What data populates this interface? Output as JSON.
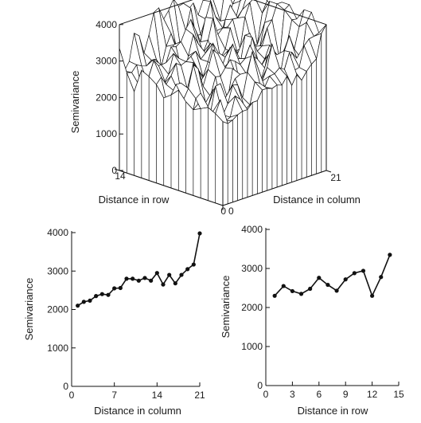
{
  "chart_data": [
    {
      "type": "surface",
      "ylabel": "Semivariance",
      "xlabel": "Distance in row",
      "zlabel": "Distance in column",
      "zlim": [
        0,
        4000
      ],
      "zticks": [
        "0",
        "1000",
        "2000",
        "3000",
        "4000"
      ],
      "row_ticks": [
        "14",
        "0"
      ],
      "col_ticks": [
        "0",
        "21"
      ],
      "row_range": [
        0,
        14
      ],
      "col_range": [
        0,
        21
      ],
      "row_profile_at_col0": [
        2300,
        2450,
        2550,
        2450,
        2350,
        2500,
        2750,
        2550,
        2400,
        2700,
        2850,
        2950,
        2300,
        2750,
        3350
      ],
      "col_profile_at_row0": [
        2100,
        2200,
        2250,
        2350,
        2400,
        2400,
        2550,
        2550,
        2800,
        2800,
        2750,
        2800,
        2750,
        2950,
        2650,
        2900,
        2700,
        2900,
        3050,
        3150,
        3800,
        4000
      ]
    },
    {
      "type": "line",
      "xlabel": "Distance in column",
      "ylabel": "Semivariance",
      "xlim": [
        0,
        21
      ],
      "ylim": [
        0,
        4000
      ],
      "xticks": [
        "0",
        "7",
        "14",
        "21"
      ],
      "yticks": [
        "0",
        "1000",
        "2000",
        "3000",
        "4000"
      ],
      "x": [
        1,
        2,
        3,
        4,
        5,
        6,
        7,
        8,
        9,
        10,
        11,
        12,
        13,
        14,
        15,
        16,
        17,
        18,
        19,
        20,
        21
      ],
      "y": [
        2100,
        2200,
        2230,
        2350,
        2400,
        2380,
        2550,
        2560,
        2800,
        2800,
        2750,
        2820,
        2750,
        2950,
        2650,
        2900,
        2680,
        2900,
        3050,
        3170,
        3980
      ]
    },
    {
      "type": "line",
      "xlabel": "Distance in row",
      "ylabel": "Semivariance",
      "xlim": [
        0,
        15
      ],
      "ylim": [
        0,
        4000
      ],
      "xticks": [
        "0",
        "3",
        "6",
        "9",
        "12",
        "15"
      ],
      "yticks": [
        "0",
        "1000",
        "2000",
        "3000",
        "4000"
      ],
      "x": [
        1,
        2,
        3,
        4,
        5,
        6,
        7,
        8,
        9,
        10,
        11,
        12,
        13,
        14
      ],
      "y": [
        2300,
        2550,
        2420,
        2350,
        2480,
        2760,
        2580,
        2430,
        2720,
        2880,
        2940,
        2300,
        2780,
        3350
      ]
    }
  ]
}
